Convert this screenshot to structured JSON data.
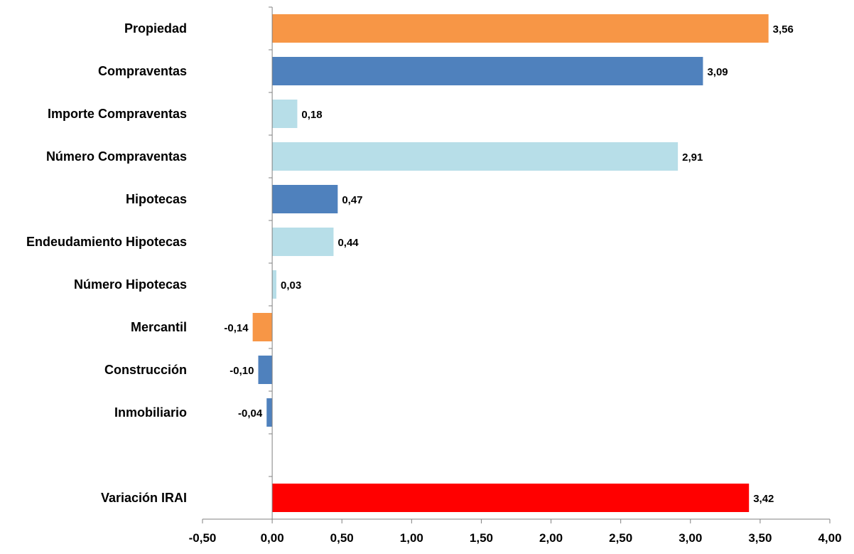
{
  "chart_data": {
    "type": "bar",
    "orientation": "horizontal",
    "title": "",
    "xlabel": "",
    "ylabel": "",
    "xlim": [
      -0.5,
      4.0
    ],
    "x_ticks": [
      "-0,50",
      "0,00",
      "0,50",
      "1,00",
      "1,50",
      "2,00",
      "2,50",
      "3,00",
      "3,50",
      "4,00"
    ],
    "x_tick_values": [
      -0.5,
      0,
      0.5,
      1.0,
      1.5,
      2.0,
      2.5,
      3.0,
      3.5,
      4.0
    ],
    "grid": false,
    "legend": "none",
    "categories": [
      "Propiedad",
      "Compraventas",
      "Importe Compraventas",
      "Número Compraventas",
      "Hipotecas",
      "Endeudamiento Hipotecas",
      "Número Hipotecas",
      "Mercantil",
      "Construcción",
      "Inmobiliario",
      "",
      "Variación IRAI"
    ],
    "values": [
      3.56,
      3.09,
      0.18,
      2.91,
      0.47,
      0.44,
      0.03,
      -0.14,
      -0.1,
      -0.04,
      null,
      3.42
    ],
    "value_labels": [
      "3,56",
      "3,09",
      "0,18",
      "2,91",
      "0,47",
      "0,44",
      "0,03",
      "-0,14",
      "-0,10",
      "-0,04",
      "",
      "3,42"
    ],
    "colors": [
      "#F79646",
      "#4F81BD",
      "#B7DEE8",
      "#B7DEE8",
      "#4F81BD",
      "#B7DEE8",
      "#B7DEE8",
      "#F79646",
      "#4F81BD",
      "#4F81BD",
      "",
      "#FF0000"
    ]
  }
}
